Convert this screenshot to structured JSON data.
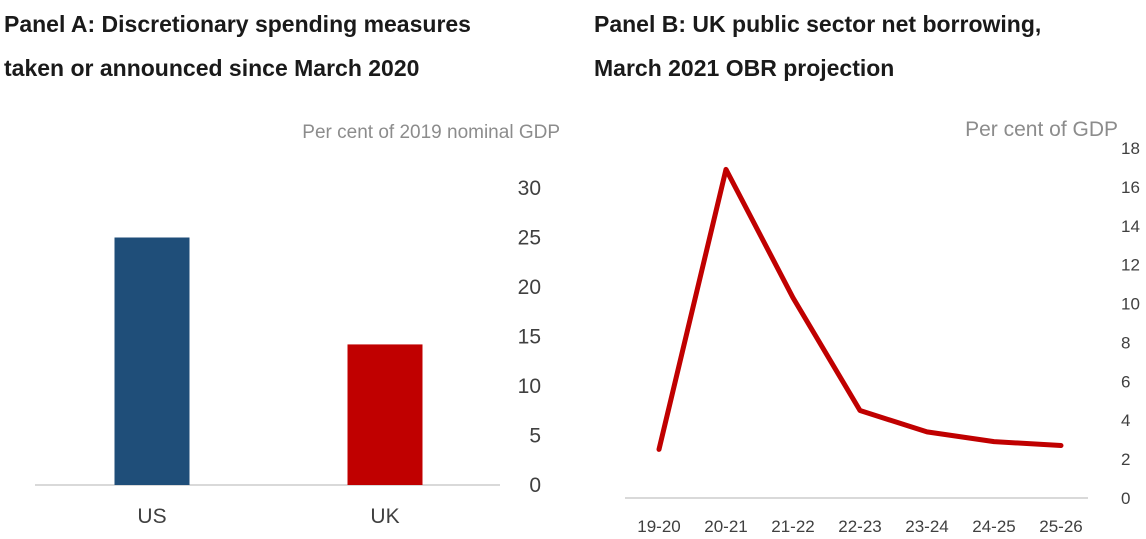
{
  "panels": {
    "a_title_line1": "Panel A: Discretionary spending measures",
    "a_title_line2": "taken or announced since March 2020",
    "b_title_line1": "Panel B: UK public sector net borrowing,",
    "b_title_line2": "March 2021 OBR projection"
  },
  "chart_data": [
    {
      "type": "bar",
      "title": "Panel A: Discretionary spending measures taken or announced since March 2020",
      "ylabel": "Per cent of 2019 nominal GDP",
      "categories": [
        "US",
        "UK"
      ],
      "values": [
        25,
        14.2
      ],
      "bar_colors": [
        "#1f4e79",
        "#c00000"
      ],
      "ylim": [
        0,
        30
      ],
      "yticks": [
        0,
        5,
        10,
        15,
        20,
        25,
        30
      ],
      "y_axis_side": "right",
      "grid": false
    },
    {
      "type": "line",
      "title": "Panel B: UK public sector net borrowing, March 2021 OBR projection",
      "ylabel": "Per cent of GDP",
      "x": [
        "19-20",
        "20-21",
        "21-22",
        "22-23",
        "23-24",
        "24-25",
        "25-26"
      ],
      "series": [
        {
          "values": [
            2.5,
            16.9,
            10.3,
            4.5,
            3.4,
            2.9,
            2.7
          ],
          "color": "#c00000"
        }
      ],
      "ylim": [
        0,
        18
      ],
      "yticks": [
        0,
        2,
        4,
        6,
        8,
        10,
        12,
        14,
        16,
        18
      ],
      "y_axis_side": "right",
      "grid": false
    }
  ]
}
